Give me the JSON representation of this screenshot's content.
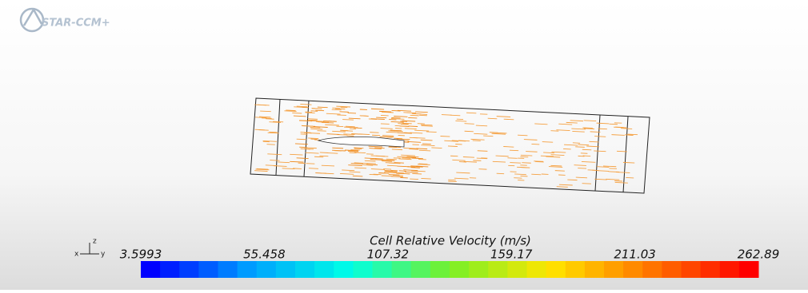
{
  "logo": "STAR-CCM+",
  "triad": {
    "x": "x",
    "y": "y",
    "z": "z"
  },
  "colorbar": {
    "title": "Cell Relative Velocity (m/s)",
    "lim": [
      3.5993,
      262.89
    ],
    "ticks": [
      3.5993,
      55.458,
      107.32,
      159.17,
      211.03,
      262.89
    ]
  }
}
